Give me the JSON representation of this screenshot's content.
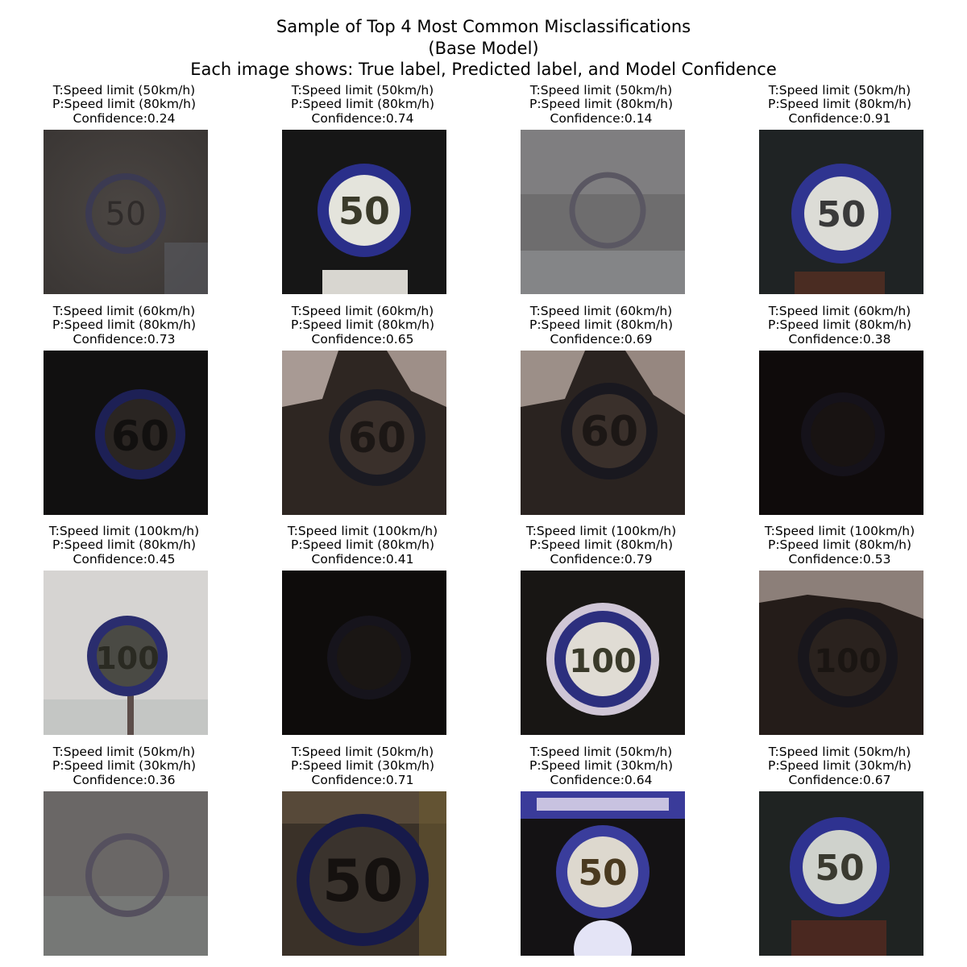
{
  "title": {
    "line1": "Sample of Top 4 Most Common Misclassifications",
    "line2": "(Base Model)",
    "line3": "Each image shows: True label, Predicted label, and Model Confidence"
  },
  "grid": [
    [
      {
        "true_label": "T:Speed limit (50km/h)",
        "pred_label": "P:Speed limit (80km/h)",
        "confidence": "Confidence:0.24"
      },
      {
        "true_label": "T:Speed limit (50km/h)",
        "pred_label": "P:Speed limit (80km/h)",
        "confidence": "Confidence:0.74"
      },
      {
        "true_label": "T:Speed limit (50km/h)",
        "pred_label": "P:Speed limit (80km/h)",
        "confidence": "Confidence:0.14"
      },
      {
        "true_label": "T:Speed limit (50km/h)",
        "pred_label": "P:Speed limit (80km/h)",
        "confidence": "Confidence:0.91"
      }
    ],
    [
      {
        "true_label": "T:Speed limit (60km/h)",
        "pred_label": "P:Speed limit (80km/h)",
        "confidence": "Confidence:0.73"
      },
      {
        "true_label": "T:Speed limit (60km/h)",
        "pred_label": "P:Speed limit (80km/h)",
        "confidence": "Confidence:0.65"
      },
      {
        "true_label": "T:Speed limit (60km/h)",
        "pred_label": "P:Speed limit (80km/h)",
        "confidence": "Confidence:0.69"
      },
      {
        "true_label": "T:Speed limit (60km/h)",
        "pred_label": "P:Speed limit (80km/h)",
        "confidence": "Confidence:0.38"
      }
    ],
    [
      {
        "true_label": "T:Speed limit (100km/h)",
        "pred_label": "P:Speed limit (80km/h)",
        "confidence": "Confidence:0.45"
      },
      {
        "true_label": "T:Speed limit (100km/h)",
        "pred_label": "P:Speed limit (80km/h)",
        "confidence": "Confidence:0.41"
      },
      {
        "true_label": "T:Speed limit (100km/h)",
        "pred_label": "P:Speed limit (80km/h)",
        "confidence": "Confidence:0.79"
      },
      {
        "true_label": "T:Speed limit (100km/h)",
        "pred_label": "P:Speed limit (80km/h)",
        "confidence": "Confidence:0.53"
      }
    ],
    [
      {
        "true_label": "T:Speed limit (50km/h)",
        "pred_label": "P:Speed limit (30km/h)",
        "confidence": "Confidence:0.36"
      },
      {
        "true_label": "T:Speed limit (50km/h)",
        "pred_label": "P:Speed limit (30km/h)",
        "confidence": "Confidence:0.71"
      },
      {
        "true_label": "T:Speed limit (50km/h)",
        "pred_label": "P:Speed limit (30km/h)",
        "confidence": "Confidence:0.64"
      },
      {
        "true_label": "T:Speed limit (50km/h)",
        "pred_label": "P:Speed limit (30km/h)",
        "confidence": "Confidence:0.67"
      }
    ]
  ]
}
